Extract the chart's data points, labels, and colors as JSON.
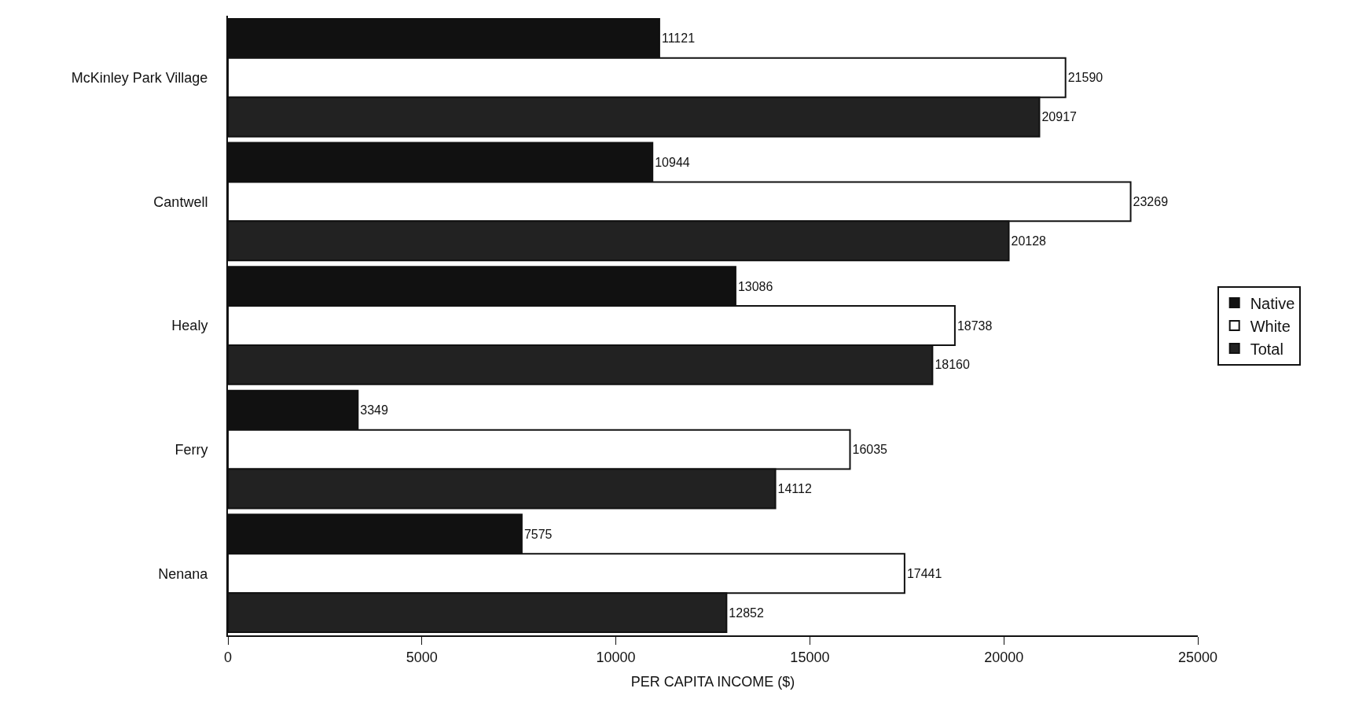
{
  "chart_data": {
    "type": "bar",
    "orientation": "horizontal",
    "xlabel": "PER CAPITA INCOME ($)",
    "categories": [
      "McKinley Park Village",
      "Cantwell",
      "Healy",
      "Ferry",
      "Nenana"
    ],
    "series": [
      {
        "name": "Native",
        "color": "#111111",
        "values": [
          11121,
          10944,
          13086,
          3349,
          7575
        ]
      },
      {
        "name": "White",
        "color": "#ffffff",
        "values": [
          21590,
          23269,
          18738,
          16035,
          17441
        ]
      },
      {
        "name": "Total",
        "color": "#222222",
        "values": [
          20917,
          20128,
          18160,
          14112,
          12852
        ]
      }
    ],
    "xlim": [
      0,
      25000
    ],
    "xticks": [
      0,
      5000,
      10000,
      15000,
      20000,
      25000
    ],
    "data_labels": true,
    "grid": false,
    "legend": "right"
  }
}
